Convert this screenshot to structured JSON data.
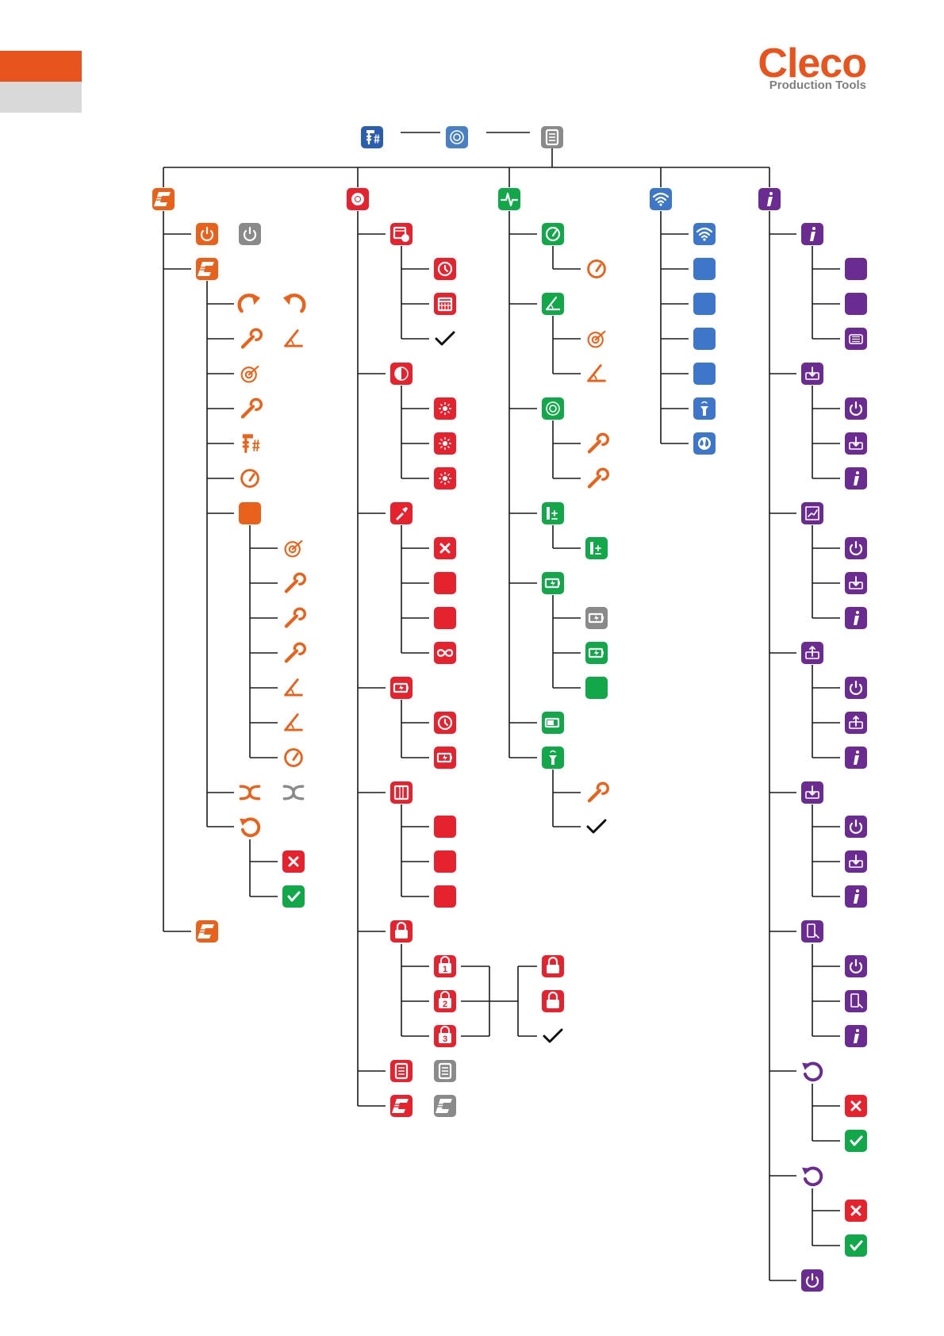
{
  "brand": {
    "name": "Cleco",
    "subtitle": "Production Tools",
    "color": "#e8541e"
  },
  "colors": {
    "orange": "#e8621c",
    "red": "#e5232f",
    "green": "#12a84a",
    "blue": "#3e77c9",
    "purple": "#6a2c91",
    "grey": "#8a8a8a",
    "line": "#1a1a1a"
  },
  "icons": {
    "root_tool": "tool-fastener-icon",
    "root_device": "device-icon",
    "root_menu": "menu-icon",
    "sections": [
      {
        "key": "orange",
        "header": "cleco-logo-icon",
        "items": [
          "power-icon",
          "cleco-logo-icon",
          "rotate-cw-icon",
          "rotate-ccw-icon",
          "wrench-torque-icon",
          "angle-icon",
          "target-icon",
          "wrench-torque-down-icon",
          "screw-count-icon",
          "speedometer-icon",
          "blank-icon",
          "target-icon",
          "wrench-torque-limit-icon",
          "wrench-torque-icon",
          "wrench-torque-down-icon",
          "angle-limit-icon",
          "angle-icon",
          "speedometer-tracker-icon",
          "swap-icon",
          "swap-icon",
          "undo-icon",
          "x-icon",
          "check-icon",
          "cleco-logo-icon"
        ]
      },
      {
        "key": "red",
        "header": "gear-icon",
        "items": [
          "calendar-clock-icon",
          "clock-icon",
          "calendar-icon",
          "check-icon",
          "brightness-icon",
          "light-low-icon",
          "light-medium-icon",
          "light-high-icon",
          "flashlight-icon",
          "x-icon",
          "blank-icon",
          "blank-icon",
          "infinity-icon",
          "battery-icon",
          "clock-icon",
          "battery-icon",
          "display-icon",
          "blank-icon",
          "blank-icon",
          "blank-icon",
          "lock-icon",
          "lock-1-icon",
          "lock-2-icon",
          "lock-3-icon",
          "lock-icon",
          "lock-icon",
          "check-icon",
          "menu-icon",
          "menu-icon",
          "cleco-logo-icon",
          "cleco-logo-icon"
        ]
      },
      {
        "key": "green",
        "header": "pulse-icon",
        "items": [
          "speedometer-icon",
          "speedometer-icon",
          "angle-icon",
          "target-icon",
          "angle-icon",
          "rotation-icon",
          "wrench-torque-icon",
          "wrench-torque-limit-icon",
          "wrench-plus-minus-icon",
          "wrench-plus-minus-icon",
          "battery-icon",
          "battery-icon",
          "battery-icon",
          "blank-icon",
          "battery-level-icon",
          "tool-signal-icon",
          "wrench-torque-icon",
          "check-icon"
        ]
      },
      {
        "key": "blue",
        "header": "wifi-icon",
        "items": [
          "wifi-icon",
          "blank-icon",
          "blank-icon",
          "blank-icon",
          "blank-icon",
          "tool-signal-icon",
          "globe-icon"
        ]
      },
      {
        "key": "purple",
        "header": "info-icon",
        "items": [
          "info-icon",
          "blank-icon",
          "blank-icon",
          "controller-icon",
          "import-icon",
          "power-icon",
          "import-icon",
          "info-icon",
          "chart-icon",
          "power-icon",
          "import-icon",
          "info-icon",
          "export-icon",
          "power-icon",
          "export-icon",
          "info-icon",
          "download-icon",
          "power-icon",
          "download-icon",
          "info-icon",
          "device-transfer-icon",
          "power-icon",
          "device-transfer-icon",
          "info-icon",
          "undo-settings-icon",
          "x-icon",
          "check-icon",
          "undo-icon",
          "x-icon",
          "check-icon",
          "power-icon"
        ]
      }
    ]
  }
}
